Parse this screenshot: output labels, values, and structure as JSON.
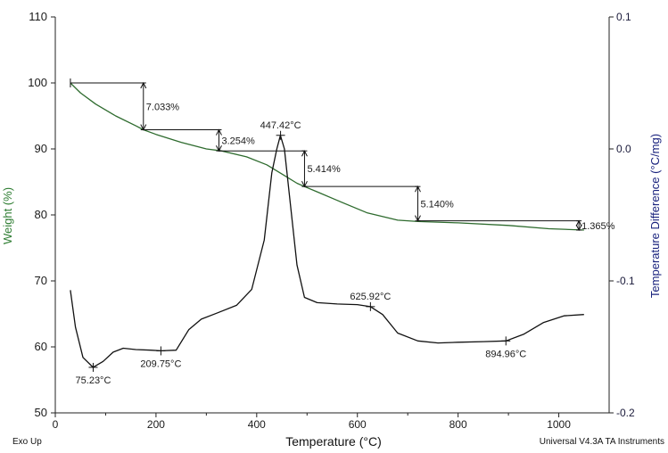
{
  "footer": {
    "left": "Exo Up",
    "right": "Universal V4.3A TA Instruments"
  },
  "chart_data": {
    "type": "line",
    "title": "",
    "xlabel": "Temperature (°C)",
    "ylabel_left": "Weight (%)",
    "ylabel_right": "Temperature Difference (°C/mg)",
    "xlim": [
      0,
      1100
    ],
    "ylim_left": [
      50,
      110
    ],
    "ylim_right": [
      -0.2,
      0.1
    ],
    "x_ticks": [
      "0",
      "200",
      "400",
      "600",
      "800",
      "1000"
    ],
    "y_left_ticks": [
      "50",
      "60",
      "70",
      "80",
      "90",
      "100",
      "110"
    ],
    "y_right_ticks": [
      "-0.2",
      "-0.1",
      "0.0",
      "0.1"
    ],
    "colors": {
      "weight": "#2e6b2e",
      "dta": "#111111",
      "left_axis": "#2e7d32",
      "right_axis": "#1a237e"
    },
    "series": [
      {
        "name": "Weight",
        "axis": "left",
        "x": [
          30,
          50,
          80,
          120,
          160,
          175,
          200,
          250,
          300,
          330,
          380,
          420,
          450,
          480,
          495,
          520,
          560,
          620,
          680,
          720,
          800,
          900,
          980,
          1050
        ],
        "y": [
          100.0,
          98.5,
          96.8,
          95.0,
          93.5,
          92.9,
          92.2,
          91.0,
          90.0,
          89.7,
          88.8,
          87.6,
          86.2,
          84.8,
          84.3,
          83.5,
          82.2,
          80.3,
          79.2,
          79.0,
          78.8,
          78.4,
          77.9,
          77.7
        ]
      },
      {
        "name": "DTA",
        "axis": "right",
        "x": [
          30,
          40,
          55,
          75,
          95,
          115,
          135,
          160,
          190,
          210,
          240,
          265,
          290,
          320,
          360,
          390,
          415,
          430,
          440,
          447,
          455,
          465,
          480,
          495,
          520,
          560,
          600,
          626,
          650,
          680,
          720,
          760,
          800,
          850,
          895,
          930,
          970,
          1010,
          1050
        ],
        "y": [
          -0.107,
          -0.135,
          -0.158,
          -0.1655,
          -0.161,
          -0.154,
          -0.151,
          -0.152,
          -0.1525,
          -0.153,
          -0.1525,
          -0.137,
          -0.129,
          -0.1245,
          -0.1185,
          -0.1065,
          -0.069,
          -0.018,
          0.0,
          0.0103,
          0.0,
          -0.035,
          -0.088,
          -0.1125,
          -0.1165,
          -0.1175,
          -0.118,
          -0.1195,
          -0.1255,
          -0.1395,
          -0.1455,
          -0.147,
          -0.1465,
          -0.146,
          -0.1455,
          -0.1405,
          -0.1315,
          -0.1265,
          -0.1255
        ]
      }
    ],
    "annotations": {
      "weight_losses": [
        {
          "label": "7.033%",
          "x": 175,
          "y_top": 100.0,
          "y_bottom": 92.9
        },
        {
          "label": "3.254%",
          "x": 325,
          "y_top": 92.9,
          "y_bottom": 89.7
        },
        {
          "label": "5.414%",
          "x": 495,
          "y_top": 89.7,
          "y_bottom": 84.3
        },
        {
          "label": "5.140%",
          "x": 720,
          "y_top": 84.3,
          "y_bottom": 79.1
        },
        {
          "label": "1.365%",
          "x": 1040,
          "y_top": 79.1,
          "y_bottom": 77.7
        }
      ],
      "peaks": [
        {
          "label": "447.42°C",
          "x": 447.42,
          "y": 0.0103,
          "label_pos": "above"
        },
        {
          "label": "625.92°C",
          "x": 625.92,
          "y": -0.1195,
          "label_pos": "above"
        },
        {
          "label": "75.23°C",
          "x": 75.23,
          "y": -0.1655,
          "label_pos": "below"
        },
        {
          "label": "209.75°C",
          "x": 209.75,
          "y": -0.153,
          "label_pos": "below"
        },
        {
          "label": "894.96°C",
          "x": 894.96,
          "y": -0.1455,
          "label_pos": "below"
        }
      ]
    }
  }
}
